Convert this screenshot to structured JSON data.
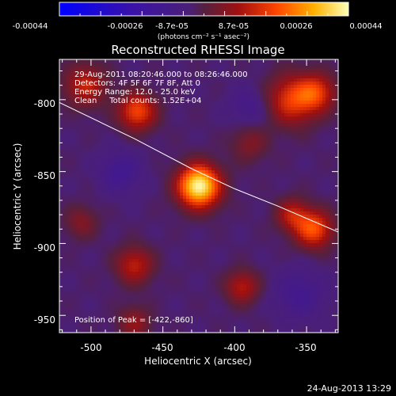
{
  "chart_data": {
    "type": "heatmap",
    "title": "Reconstructed RHESSI Image",
    "xlabel": "Heliocentric X (arcsec)",
    "ylabel": "Heliocentric Y (arcsec)",
    "xlim": [
      -522,
      -328
    ],
    "ylim": [
      -962,
      -772
    ],
    "x_ticks": [
      -500,
      -450,
      -400,
      -350
    ],
    "y_ticks": [
      -800,
      -850,
      -900,
      -950
    ],
    "colorbar": {
      "range": [
        -0.00044,
        0.00044
      ],
      "ticks": [
        "-0.00044",
        "-0.00026",
        "-8.7e-05",
        "8.7e-05",
        "0.00026",
        "0.00044"
      ],
      "units_label": "(photons cm⁻² s⁻¹ asec⁻²)"
    },
    "annotations": [
      "29-Aug-2011 08:20:46.000 to 08:26:46.000",
      "Detectors: 4F 5F 6F 7F 8F, Att 0",
      "Energy Range: 12.0 - 25.0 keV",
      "Clean     Total counts: 1.52E+04"
    ],
    "peak_label": "Position of Peak = [-422,-860]",
    "peak": {
      "x": -422,
      "y": -860
    },
    "sources": [
      {
        "x": -425,
        "y": -860,
        "amp": 1.0,
        "sigma": 10
      },
      {
        "x": -468,
        "y": -808,
        "amp": 0.52,
        "sigma": 9
      },
      {
        "x": -504,
        "y": -790,
        "amp": 0.38,
        "sigma": 10
      },
      {
        "x": -360,
        "y": -800,
        "amp": 0.48,
        "sigma": 12
      },
      {
        "x": -343,
        "y": -795,
        "amp": 0.42,
        "sigma": 9
      },
      {
        "x": -345,
        "y": -890,
        "amp": 0.55,
        "sigma": 9
      },
      {
        "x": -360,
        "y": -880,
        "amp": 0.35,
        "sigma": 8
      },
      {
        "x": -470,
        "y": -915,
        "amp": 0.36,
        "sigma": 9
      },
      {
        "x": -395,
        "y": -930,
        "amp": 0.34,
        "sigma": 8
      },
      {
        "x": -470,
        "y": -955,
        "amp": 0.25,
        "sigma": 8
      },
      {
        "x": -507,
        "y": -885,
        "amp": 0.2,
        "sigma": 8
      },
      {
        "x": -390,
        "y": -830,
        "amp": 0.2,
        "sigma": 9
      },
      {
        "x": -480,
        "y": -850,
        "amp": -0.2,
        "sigma": 10
      },
      {
        "x": -390,
        "y": -805,
        "amp": -0.15,
        "sigma": 10
      },
      {
        "x": -355,
        "y": -935,
        "amp": -0.18,
        "sigma": 12
      }
    ],
    "limb_curve": [
      [
        -522,
        -802
      ],
      [
        -470,
        -827
      ],
      [
        -430,
        -848
      ],
      [
        -400,
        -862
      ],
      [
        -370,
        -874
      ],
      [
        -328,
        -892
      ]
    ]
  },
  "footer": {
    "date": "24-Aug-2013 13:29"
  },
  "colors": {
    "background": "#000000",
    "text": "#ffffff",
    "limb": "#ffffff"
  }
}
